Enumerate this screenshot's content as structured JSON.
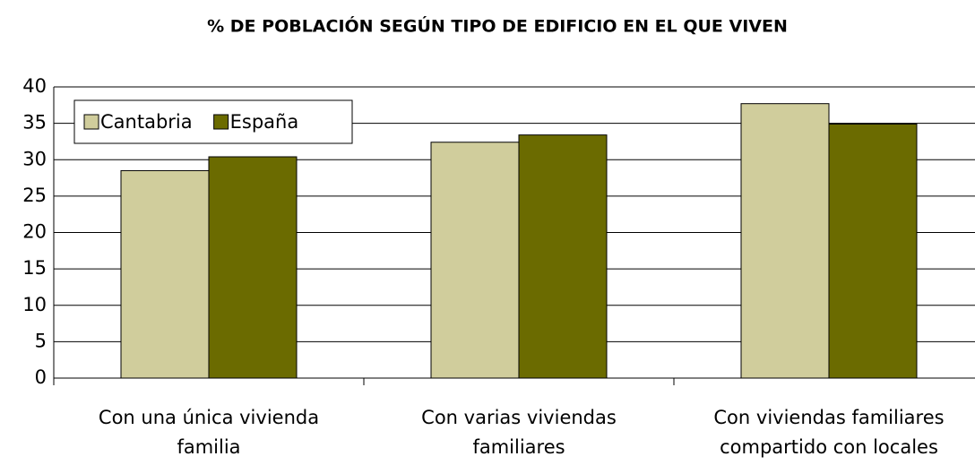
{
  "chart_data": {
    "type": "bar",
    "title": "% DE POBLACIÓN SEGÚN TIPO DE EDIFICIO EN EL QUE VIVEN",
    "categories": [
      [
        "Con una única vivienda",
        "familia"
      ],
      [
        "Con varias viviendas",
        "familiares"
      ],
      [
        "Con viviendas familiares",
        "compartido con locales"
      ]
    ],
    "series": [
      {
        "name": "Cantabria",
        "color": "#d0cd9c",
        "values": [
          28.5,
          32.4,
          37.7
        ]
      },
      {
        "name": "España",
        "color": "#6b6b00",
        "values": [
          30.4,
          33.4,
          34.9
        ]
      }
    ],
    "ylim": [
      0,
      40
    ],
    "yticks": [
      0,
      5,
      10,
      15,
      20,
      25,
      30,
      35,
      40
    ],
    "grid": true,
    "legend": "top-left"
  }
}
